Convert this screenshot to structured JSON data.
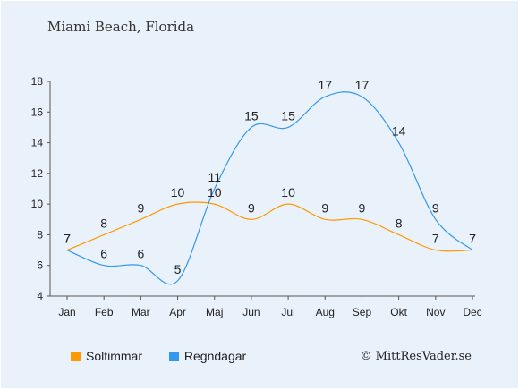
{
  "title": "Miami Beach, Florida",
  "credit": "© MittResVader.se",
  "chart_data": {
    "type": "line",
    "categories": [
      "Jan",
      "Feb",
      "Mar",
      "Apr",
      "Maj",
      "Jun",
      "Jul",
      "Aug",
      "Sep",
      "Okt",
      "Nov",
      "Dec"
    ],
    "ylim": [
      4,
      18
    ],
    "yticks": [
      4,
      6,
      8,
      10,
      12,
      14,
      16,
      18
    ],
    "grid": false,
    "legend_position": "bottom-left",
    "series": [
      {
        "name": "Soltimmar",
        "color": "#ff9900",
        "values": [
          7,
          8,
          9,
          10,
          10,
          9,
          10,
          9,
          9,
          8,
          7,
          7
        ]
      },
      {
        "name": "Regndagar",
        "color": "#3399ee",
        "values": [
          7,
          6,
          6,
          5,
          11,
          15,
          15,
          17,
          17,
          14,
          9,
          7
        ]
      }
    ]
  }
}
